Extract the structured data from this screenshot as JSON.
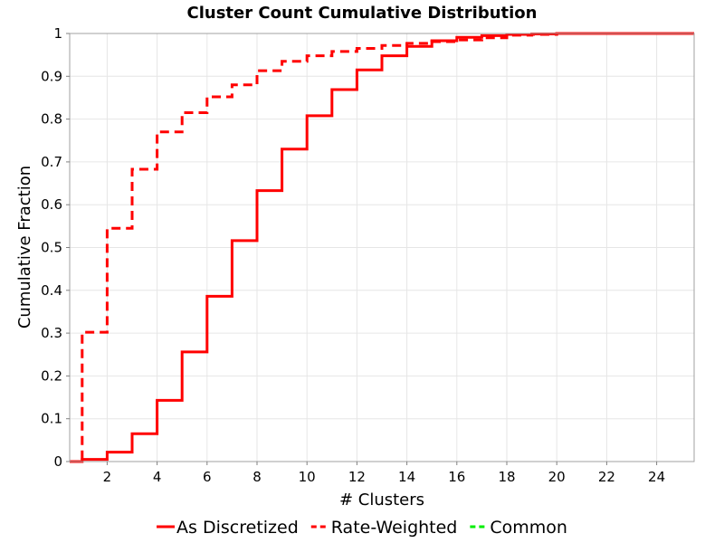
{
  "chart_data": {
    "type": "line",
    "step": true,
    "title": "Cluster Count Cumulative Distribution",
    "xlabel": "# Clusters",
    "ylabel": "Cumulative Fraction",
    "xlim": [
      0.5,
      25.5
    ],
    "ylim": [
      0,
      1
    ],
    "x_ticks": [
      2,
      4,
      6,
      8,
      10,
      12,
      14,
      16,
      18,
      20,
      22,
      24
    ],
    "y_ticks": [
      0,
      0.1,
      0.2,
      0.3,
      0.4,
      0.5,
      0.6,
      0.7,
      0.8,
      0.9,
      1
    ],
    "x_tick_labels": [
      "2",
      "4",
      "6",
      "8",
      "10",
      "12",
      "14",
      "16",
      "18",
      "20",
      "22",
      "24"
    ],
    "y_tick_labels": [
      "0",
      "0.1",
      "0.2",
      "0.3",
      "0.4",
      "0.5",
      "0.6",
      "0.7",
      "0.8",
      "0.9",
      "1"
    ],
    "grid": true,
    "legend_position": "bottom",
    "series": [
      {
        "name": "As Discretized",
        "color": "#ff0000",
        "dash": "solid",
        "x": [
          0.5,
          1,
          2,
          3,
          4,
          5,
          6,
          7,
          8,
          9,
          10,
          11,
          12,
          13,
          14,
          15,
          16,
          17,
          18,
          19,
          20,
          25.5
        ],
        "y": [
          0,
          0.005,
          0.022,
          0.065,
          0.143,
          0.256,
          0.386,
          0.516,
          0.633,
          0.73,
          0.808,
          0.869,
          0.915,
          0.948,
          0.97,
          0.983,
          0.991,
          0.995,
          0.998,
          0.999,
          1,
          1
        ]
      },
      {
        "name": "Rate-Weighted",
        "color": "#ff0000",
        "dash": "dashed",
        "x": [
          0.5,
          1,
          2,
          3,
          4,
          5,
          6,
          7,
          8,
          9,
          10,
          11,
          12,
          13,
          14,
          15,
          16,
          17,
          18,
          19,
          20,
          25.5
        ],
        "y": [
          0,
          0.302,
          0.545,
          0.683,
          0.77,
          0.815,
          0.852,
          0.88,
          0.913,
          0.935,
          0.948,
          0.958,
          0.965,
          0.972,
          0.977,
          0.981,
          0.985,
          0.99,
          0.996,
          0.998,
          1,
          1
        ]
      },
      {
        "name": "Common",
        "color": "#00ee00",
        "dash": "dashed",
        "x": [],
        "y": []
      }
    ]
  }
}
